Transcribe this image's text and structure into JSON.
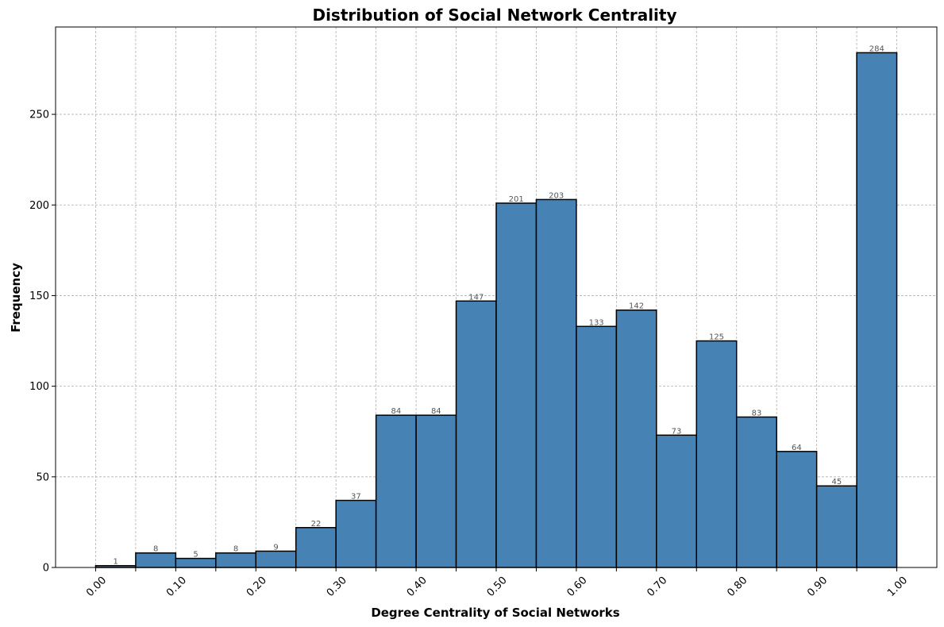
{
  "chart_data": {
    "type": "bar",
    "title": "Distribution of Social Network Centrality",
    "xlabel": "Degree Centrality of Social Networks",
    "ylabel": "Frequency",
    "bin_edges": [
      0.0,
      0.05,
      0.1,
      0.15,
      0.2,
      0.25,
      0.3,
      0.35,
      0.4,
      0.45,
      0.5,
      0.55,
      0.6,
      0.65,
      0.7,
      0.75,
      0.8,
      0.85,
      0.9,
      0.95,
      1.0
    ],
    "values": [
      1,
      8,
      5,
      8,
      9,
      22,
      37,
      84,
      84,
      147,
      201,
      203,
      133,
      142,
      73,
      125,
      83,
      64,
      45,
      284
    ],
    "data_labels": [
      "1",
      "8",
      "5",
      "8",
      "9",
      "22",
      "37",
      "84",
      "84",
      "147",
      "201",
      "203",
      "133",
      "142",
      "73",
      "125",
      "83",
      "64",
      "45",
      "284"
    ],
    "xlim": [
      -0.05,
      1.05
    ],
    "ylim": [
      0,
      298.2
    ],
    "x_ticks": [
      0.0,
      0.1,
      0.2,
      0.3,
      0.4,
      0.5,
      0.6,
      0.7,
      0.8,
      0.9,
      1.0
    ],
    "x_tick_labels": [
      "0.00",
      "0.10",
      "0.20",
      "0.30",
      "0.40",
      "0.50",
      "0.60",
      "0.70",
      "0.80",
      "0.90",
      "1.00"
    ],
    "y_ticks": [
      0,
      50,
      100,
      150,
      200,
      250
    ],
    "y_tick_labels": [
      "0",
      "50",
      "100",
      "150",
      "200",
      "250"
    ],
    "bar_color": "#4682b4",
    "edge_color": "#000000",
    "grid": true
  }
}
